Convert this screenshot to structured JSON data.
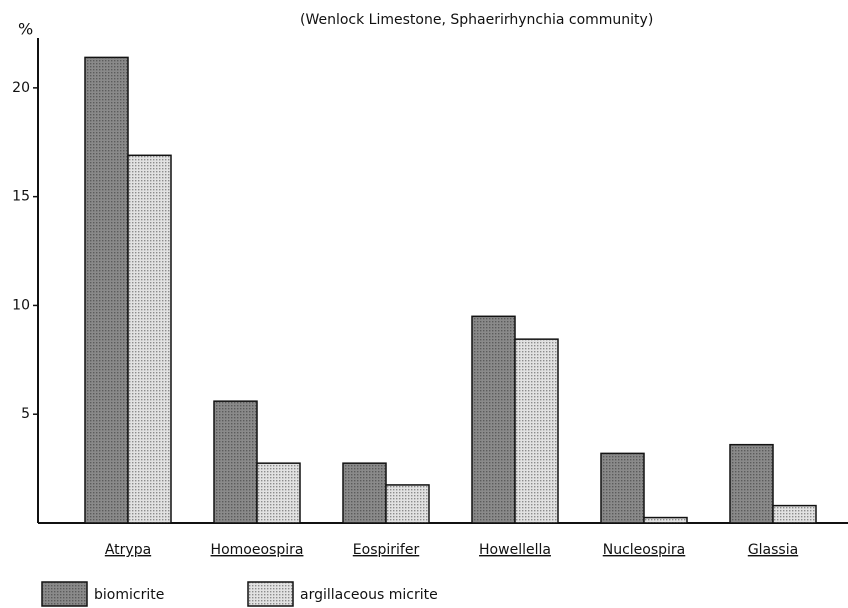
{
  "chart_data": {
    "type": "bar",
    "title": "(Wenlock Limestone, Sphaerirhynchia community)",
    "y_label": "%",
    "categories": [
      "Atrypa",
      "Homoeospira",
      "Eospirifer",
      "Howellella",
      "Nucleospira",
      "Glassia"
    ],
    "series": [
      {
        "name": "biomicrite",
        "color": "#8a8a8a",
        "values": [
          21.4,
          5.6,
          2.75,
          9.5,
          3.2,
          3.6
        ]
      },
      {
        "name": "argillaceous micrite",
        "color": "#e2e2e2",
        "values": [
          16.9,
          2.75,
          1.75,
          8.45,
          0.25,
          0.8
        ]
      }
    ],
    "ylim": [
      0,
      22.2
    ],
    "yticks": [
      5,
      10,
      15,
      20
    ],
    "legend": "bottom-left"
  }
}
